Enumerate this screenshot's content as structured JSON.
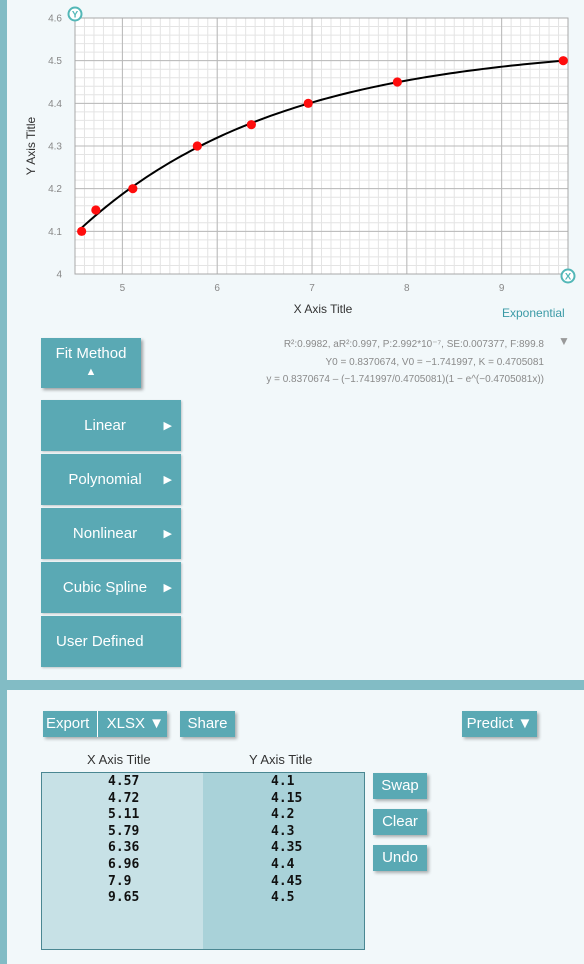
{
  "chart_data": {
    "type": "scatter",
    "xlabel": "X Axis Title",
    "ylabel": "Y Axis Title",
    "xlim": [
      4.5,
      9.7
    ],
    "ylim": [
      4.0,
      4.6
    ],
    "xticks": [
      "5",
      "6",
      "7",
      "8",
      "9"
    ],
    "yticks": [
      "4",
      "4.1",
      "4.2",
      "4.3",
      "4.4",
      "4.5",
      "4.6"
    ],
    "grid": true,
    "x": [
      4.57,
      4.72,
      5.11,
      5.79,
      6.36,
      6.96,
      7.9,
      9.65
    ],
    "y": [
      4.1,
      4.15,
      4.2,
      4.3,
      4.35,
      4.4,
      4.45,
      4.5
    ],
    "fit": {
      "type": "exponential",
      "Y0": 0.8370674,
      "V0": -1.741997,
      "K": 0.4705081
    },
    "point_color": "#ff0d0d",
    "line_color": "#000000"
  },
  "fit_name": "Exponential",
  "stats": {
    "line1": "R²:0.9982, aR²:0.997, P:2.992*10⁻⁷, SE:0.007377, F:899.8",
    "line2": "Y0 = 0.8370674, V0 = −1.741997, K = 0.4705081",
    "line3": "y = 0.8370674 – (−1.741997/0.4705081)(1 − e^(−0.4705081x))",
    "toggle": "▼"
  },
  "fit_method": {
    "label": "Fit Method",
    "arrow": "▲"
  },
  "menu": [
    {
      "label": "Linear",
      "arrow": "▶"
    },
    {
      "label": "Polynomial",
      "arrow": "▶"
    },
    {
      "label": "Nonlinear",
      "arrow": "▶"
    },
    {
      "label": "Cubic Spline",
      "arrow": "▶"
    },
    {
      "label": "User Defined",
      "arrow": ""
    }
  ],
  "toolbar": {
    "export": "Export",
    "format": "XLSX ▼",
    "share": "Share",
    "predict": "Predict ▼"
  },
  "table": {
    "x_header": "X Axis Title",
    "y_header": "Y Axis Title",
    "x_values": [
      "4.57",
      "4.72",
      "5.11",
      "5.79",
      "6.36",
      "6.96",
      "7.9",
      "9.65"
    ],
    "y_values": [
      "4.1",
      "4.15",
      "4.2",
      "4.3",
      "4.35",
      "4.4",
      "4.45",
      "4.5"
    ]
  },
  "side_buttons": {
    "swap": "Swap",
    "clear": "Clear",
    "undo": "Undo"
  },
  "colors": {
    "accent": "#5aa9b4",
    "border": "#82bcc5",
    "panel": "#f2f8fa"
  }
}
